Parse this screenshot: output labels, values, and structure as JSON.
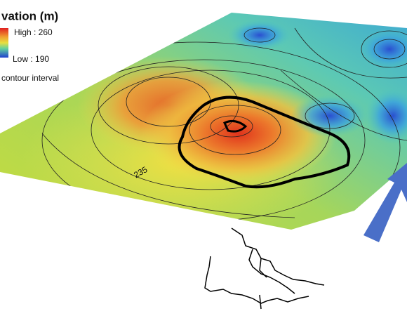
{
  "legend": {
    "title": "vation (m)",
    "high": "High : 260",
    "low": "Low : 190",
    "note": "contour interval"
  },
  "contour_label": "235"
}
